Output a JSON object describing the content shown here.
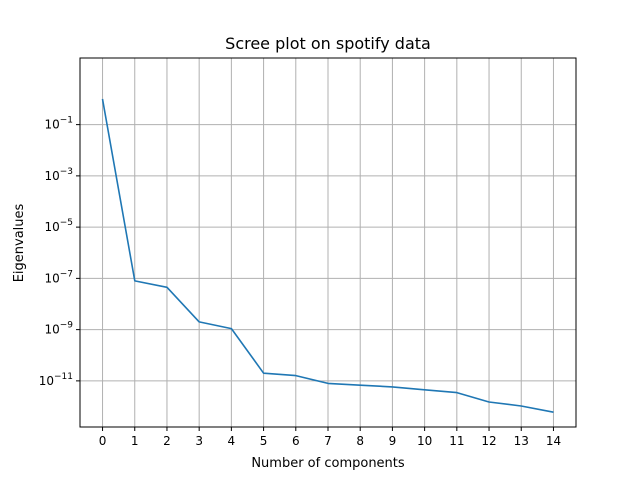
{
  "chart_data": {
    "type": "line",
    "title": "Scree plot on spotify data",
    "xlabel": "Number of components",
    "ylabel": "Eigenvalues",
    "xlim": [
      -0.7,
      14.7
    ],
    "ylim_log10": [
      -12.8,
      1.6
    ],
    "yscale": "log",
    "grid": true,
    "x_ticks": [
      0,
      1,
      2,
      3,
      4,
      5,
      6,
      7,
      8,
      9,
      10,
      11,
      12,
      13,
      14
    ],
    "y_tick_exponents": [
      -11,
      -9,
      -7,
      -5,
      -3,
      -1
    ],
    "series": [
      {
        "color": "#1f77b4",
        "x": [
          0,
          1,
          2,
          3,
          4,
          5,
          6,
          7,
          8,
          9,
          10,
          11,
          12,
          13,
          14
        ],
        "y": [
          1.0,
          8e-08,
          4.5e-08,
          2e-09,
          1.1e-09,
          2e-11,
          1.6e-11,
          8e-12,
          6.8e-12,
          5.8e-12,
          4.5e-12,
          3.5e-12,
          1.5e-12,
          1.05e-12,
          6e-13
        ]
      }
    ]
  }
}
